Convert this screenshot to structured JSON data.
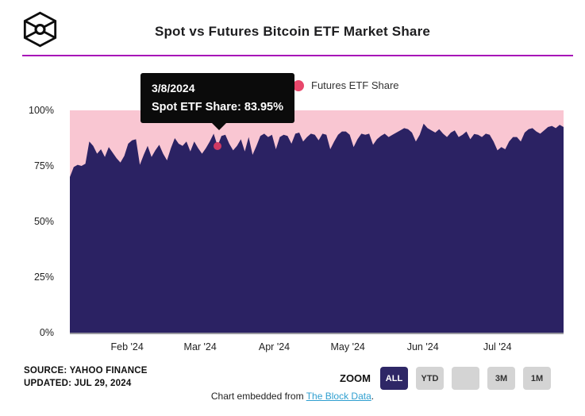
{
  "header": {
    "title": "Spot vs Futures Bitcoin ETF Market Share",
    "logo_name": "the-block-logo",
    "accent_rule_color": "#a710b8"
  },
  "legend": {
    "items": [
      {
        "label": "Futures ETF Share",
        "marker_color": "#e8476b"
      }
    ]
  },
  "tooltip": {
    "date": "3/8/2024",
    "value_text": "Spot ETF Share: 83.95%"
  },
  "chart_data": {
    "type": "area",
    "stacking": "percent",
    "title": "Spot vs Futures Bitcoin ETF Market Share",
    "x_range": [
      "2024-01-11",
      "2024-07-29"
    ],
    "ylim": [
      0,
      100
    ],
    "grid": false,
    "legend_position": "top",
    "y_ticks": [
      {
        "label": "0%",
        "value": 0
      },
      {
        "label": "25%",
        "value": 25
      },
      {
        "label": "50%",
        "value": 50
      },
      {
        "label": "75%",
        "value": 75
      },
      {
        "label": "100%",
        "value": 100
      }
    ],
    "x_ticks": [
      {
        "label": "Feb '24",
        "f": 0.116
      },
      {
        "label": "Mar '24",
        "f": 0.264
      },
      {
        "label": "Apr '24",
        "f": 0.414
      },
      {
        "label": "May '24",
        "f": 0.563
      },
      {
        "label": "Jun '24",
        "f": 0.715
      },
      {
        "label": "Jul '24",
        "f": 0.866
      }
    ],
    "series": [
      {
        "name": "Spot ETF Share",
        "color": "#2b2263",
        "values": [
          70,
          74.5,
          75.5,
          75,
          76,
          86,
          84,
          80.5,
          82.5,
          79,
          83.5,
          81,
          78.5,
          76.5,
          79.5,
          85,
          86.5,
          87,
          75.5,
          80,
          84,
          79,
          82,
          84.5,
          80.5,
          77.5,
          83,
          87.5,
          85,
          84,
          86,
          81.5,
          86,
          83,
          80.5,
          83,
          86,
          89.5,
          83.95,
          88.5,
          89,
          85,
          82,
          84,
          87,
          81.5,
          88,
          80,
          84,
          88.5,
          89.5,
          88,
          89,
          82.5,
          88,
          89,
          88.5,
          85,
          89.5,
          90,
          86,
          88,
          89.5,
          89,
          86.5,
          89.5,
          89,
          82.5,
          86,
          89,
          90.5,
          90.5,
          89,
          83.5,
          87,
          89.5,
          89,
          89.5,
          84.5,
          87,
          88.5,
          89.5,
          88,
          89,
          90,
          91,
          92,
          91.5,
          90,
          86,
          89,
          94,
          92,
          91,
          90,
          91.5,
          89.5,
          88,
          90,
          91,
          88,
          89,
          90.5,
          87,
          89.4,
          89,
          88,
          89.5,
          89,
          86,
          82,
          83.5,
          82.5,
          86,
          88,
          88,
          86,
          90,
          91.5,
          92,
          90.5,
          89.5,
          91,
          92.5,
          93,
          92,
          93.5,
          92.5
        ]
      },
      {
        "name": "Futures ETF Share",
        "color": "#f9c6d2",
        "note": "complement of Spot ETF Share to 100%"
      }
    ],
    "highlight_point": {
      "date": "3/8/2024",
      "value": 83.95,
      "x_fraction": 0.299,
      "marker_color": "#d03a63"
    }
  },
  "footer": {
    "source_line1": "SOURCE: YAHOO FINANCE",
    "source_line2": "UPDATED: JUL 29, 2024"
  },
  "zoom_controls": {
    "label": "ZOOM",
    "active_bg": "#2e2766",
    "buttons": [
      {
        "label": "ALL",
        "active": true
      },
      {
        "label": "YTD",
        "active": false
      },
      {
        "label": "",
        "active": false
      },
      {
        "label": "3M",
        "active": false
      },
      {
        "label": "1M",
        "active": false
      }
    ]
  },
  "embed": {
    "prefix": "Chart embedded from ",
    "link_text": "The Block Data",
    "suffix": ".",
    "link_color": "#2f9fd0"
  }
}
